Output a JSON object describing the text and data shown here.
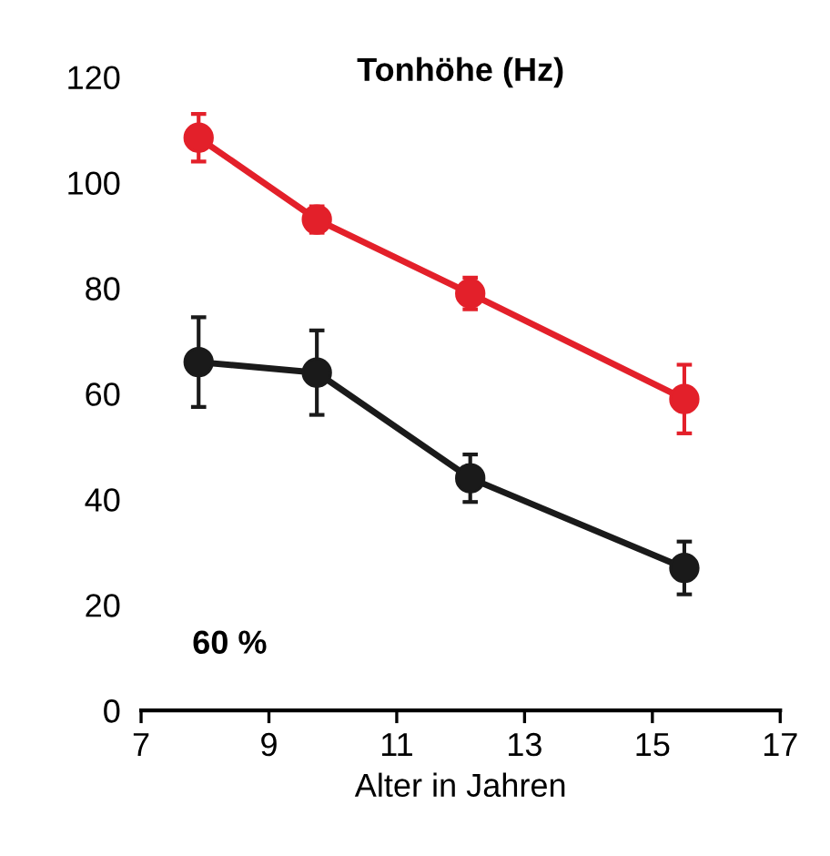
{
  "chart_data": {
    "type": "line",
    "title": "Tonhöhe (Hz)",
    "xlabel": "Alter in Jahren",
    "series": [
      {
        "color": "#e3202a",
        "x": [
          7.9,
          9.75,
          12.15,
          15.5
        ],
        "values": [
          108.5,
          93,
          79,
          59
        ],
        "errors": [
          4.5,
          2.5,
          3,
          6.5
        ]
      },
      {
        "color": "#1a1a1a",
        "x": [
          7.9,
          9.75,
          12.15,
          15.5
        ],
        "values": [
          66,
          64,
          44,
          27
        ],
        "errors": [
          8.5,
          8,
          4.5,
          5
        ]
      }
    ],
    "xlim": [
      7,
      17
    ],
    "xticks": [
      7,
      9,
      11,
      13,
      15,
      17
    ],
    "ylim": [
      0,
      120
    ],
    "yticks": [
      0,
      20,
      40,
      60,
      80,
      100,
      120
    ],
    "annotations": [
      "60 %"
    ],
    "marker": "circle",
    "line_style": "solid",
    "grid": false,
    "legend": false
  }
}
